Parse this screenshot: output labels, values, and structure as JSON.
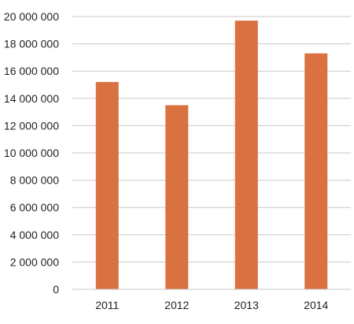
{
  "chart_data": {
    "type": "bar",
    "title": "",
    "xlabel": "",
    "ylabel": "",
    "categories": [
      "2011",
      "2012",
      "2013",
      "2014"
    ],
    "values": [
      15200000,
      13500000,
      19700000,
      17300000
    ],
    "ylim": [
      0,
      20000000
    ],
    "y_ticks": [
      0,
      2000000,
      4000000,
      6000000,
      8000000,
      10000000,
      12000000,
      14000000,
      16000000,
      18000000,
      20000000
    ],
    "y_tick_labels": [
      "0",
      "2 000 000",
      "4 000 000",
      "6 000 000",
      "8 000 000",
      "10 000 000",
      "12 000 000",
      "14 000 000",
      "16 000 000",
      "18 000 000",
      "20 000 000"
    ],
    "grid": true,
    "legend": "none",
    "bar_color": "#d97240"
  }
}
